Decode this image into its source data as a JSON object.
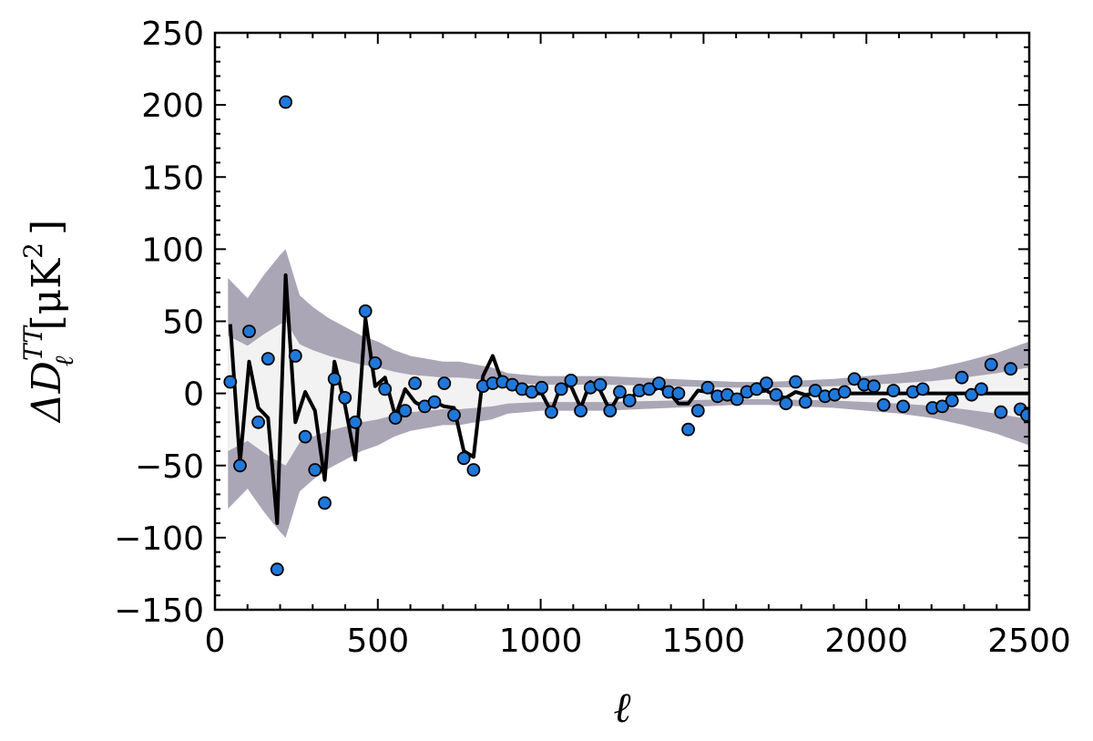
{
  "chart_data": {
    "type": "scatter",
    "title": "",
    "xlabel": "ℓ",
    "ylabel": {
      "delta": "ΔD",
      "superscript": "TT",
      "subscript": "ℓ",
      "unit": "[μK",
      "unit_exp": "2",
      "unit_close": "]"
    },
    "xlim": [
      0,
      2500
    ],
    "ylim": [
      -150,
      250
    ],
    "xticks": [
      0,
      500,
      1000,
      1500,
      2000,
      2500
    ],
    "xtick_labels": [
      "0",
      "500",
      "1000",
      "1500",
      "2000",
      "2500"
    ],
    "yticks": [
      -150,
      -100,
      -50,
      0,
      50,
      100,
      150,
      200,
      250
    ],
    "ytick_labels": [
      "−150",
      "−100",
      "−50",
      "0",
      "50",
      "100",
      "150",
      "200",
      "250"
    ],
    "grid": false,
    "colors": {
      "points": "#1f78d9",
      "line": "#000000",
      "outer_band": "#aaa6b6",
      "inner_band": "#f2f2f2"
    },
    "points": [
      [
        47,
        8
      ],
      [
        77,
        -50
      ],
      [
        105,
        43
      ],
      [
        133,
        -20
      ],
      [
        163,
        24
      ],
      [
        191,
        -122
      ],
      [
        217,
        202
      ],
      [
        247,
        26
      ],
      [
        277,
        -30
      ],
      [
        307,
        -53
      ],
      [
        337,
        -76
      ],
      [
        367,
        10
      ],
      [
        399,
        -3
      ],
      [
        431,
        -20
      ],
      [
        462,
        57
      ],
      [
        492,
        21
      ],
      [
        522,
        3
      ],
      [
        554,
        -17
      ],
      [
        584,
        -12
      ],
      [
        614,
        7
      ],
      [
        644,
        -9
      ],
      [
        674,
        -6
      ],
      [
        704,
        7
      ],
      [
        734,
        -15
      ],
      [
        764,
        -45
      ],
      [
        794,
        -53
      ],
      [
        823,
        5
      ],
      [
        853,
        7
      ],
      [
        883,
        8
      ],
      [
        913,
        6
      ],
      [
        943,
        3
      ],
      [
        973,
        1
      ],
      [
        1003,
        4
      ],
      [
        1033,
        -13
      ],
      [
        1063,
        3
      ],
      [
        1093,
        9
      ],
      [
        1123,
        -12
      ],
      [
        1153,
        4
      ],
      [
        1183,
        6
      ],
      [
        1213,
        -12
      ],
      [
        1243,
        1
      ],
      [
        1273,
        -5
      ],
      [
        1303,
        2
      ],
      [
        1333,
        3
      ],
      [
        1363,
        7
      ],
      [
        1393,
        1
      ],
      [
        1423,
        0
      ],
      [
        1453,
        -25
      ],
      [
        1483,
        -12
      ],
      [
        1513,
        4
      ],
      [
        1543,
        -2
      ],
      [
        1573,
        -1
      ],
      [
        1603,
        -4
      ],
      [
        1633,
        1
      ],
      [
        1663,
        3
      ],
      [
        1693,
        7
      ],
      [
        1723,
        -1
      ],
      [
        1753,
        -7
      ],
      [
        1783,
        8
      ],
      [
        1813,
        -6
      ],
      [
        1843,
        2
      ],
      [
        1873,
        -2
      ],
      [
        1903,
        -1
      ],
      [
        1933,
        1
      ],
      [
        1963,
        10
      ],
      [
        1993,
        6
      ],
      [
        2023,
        5
      ],
      [
        2053,
        -8
      ],
      [
        2083,
        2
      ],
      [
        2113,
        -9
      ],
      [
        2143,
        1
      ],
      [
        2173,
        3
      ],
      [
        2203,
        -10
      ],
      [
        2233,
        -9
      ],
      [
        2263,
        -5
      ],
      [
        2293,
        11
      ],
      [
        2323,
        -1
      ],
      [
        2353,
        3
      ],
      [
        2383,
        20
      ],
      [
        2413,
        -13
      ],
      [
        2443,
        17
      ],
      [
        2473,
        -11
      ],
      [
        2493,
        -15
      ]
    ],
    "model_line": [
      [
        47,
        48
      ],
      [
        77,
        -48
      ],
      [
        105,
        22
      ],
      [
        133,
        -10
      ],
      [
        163,
        -17
      ],
      [
        191,
        -90
      ],
      [
        217,
        82
      ],
      [
        247,
        -20
      ],
      [
        277,
        1
      ],
      [
        307,
        -12
      ],
      [
        337,
        -60
      ],
      [
        367,
        22
      ],
      [
        399,
        -8
      ],
      [
        431,
        -46
      ],
      [
        462,
        52
      ],
      [
        492,
        5
      ],
      [
        522,
        11
      ],
      [
        554,
        -16
      ],
      [
        584,
        3
      ],
      [
        614,
        -6
      ],
      [
        644,
        -10
      ],
      [
        674,
        -6
      ],
      [
        704,
        -9
      ],
      [
        734,
        -10
      ],
      [
        764,
        -40
      ],
      [
        794,
        -44
      ],
      [
        823,
        12
      ],
      [
        853,
        26
      ],
      [
        883,
        7
      ],
      [
        913,
        5
      ],
      [
        943,
        0
      ],
      [
        973,
        0
      ],
      [
        1003,
        0
      ],
      [
        1033,
        -13
      ],
      [
        1063,
        6
      ],
      [
        1093,
        5
      ],
      [
        1123,
        -10
      ],
      [
        1153,
        8
      ],
      [
        1183,
        2
      ],
      [
        1213,
        -12
      ],
      [
        1243,
        0
      ],
      [
        1273,
        -4
      ],
      [
        1303,
        2
      ],
      [
        1333,
        1
      ],
      [
        1363,
        4
      ],
      [
        1393,
        1
      ],
      [
        1423,
        -7
      ],
      [
        1453,
        -7
      ],
      [
        1483,
        2
      ],
      [
        1513,
        1
      ],
      [
        1543,
        0
      ],
      [
        1573,
        0
      ],
      [
        1603,
        -2
      ],
      [
        1633,
        1
      ],
      [
        1663,
        1
      ],
      [
        1693,
        2
      ],
      [
        1723,
        -2
      ],
      [
        1753,
        -3
      ],
      [
        1783,
        1
      ],
      [
        1813,
        -1
      ],
      [
        1843,
        0
      ],
      [
        1900,
        0
      ],
      [
        2500,
        0
      ]
    ],
    "band_outer_halfwidth": [
      [
        40,
        80
      ],
      [
        100,
        66
      ],
      [
        150,
        82
      ],
      [
        200,
        96
      ],
      [
        217,
        100
      ],
      [
        260,
        68
      ],
      [
        300,
        60
      ],
      [
        350,
        52
      ],
      [
        400,
        46
      ],
      [
        450,
        40
      ],
      [
        500,
        36
      ],
      [
        550,
        30
      ],
      [
        600,
        26
      ],
      [
        650,
        24
      ],
      [
        700,
        22
      ],
      [
        750,
        22
      ],
      [
        800,
        20
      ],
      [
        850,
        18
      ],
      [
        900,
        14
      ],
      [
        950,
        13
      ],
      [
        1000,
        12
      ],
      [
        1100,
        12
      ],
      [
        1200,
        12
      ],
      [
        1300,
        11
      ],
      [
        1400,
        10
      ],
      [
        1500,
        9
      ],
      [
        1600,
        8
      ],
      [
        1700,
        8
      ],
      [
        1800,
        9
      ],
      [
        1900,
        10
      ],
      [
        2000,
        12
      ],
      [
        2100,
        14
      ],
      [
        2200,
        17
      ],
      [
        2300,
        22
      ],
      [
        2400,
        28
      ],
      [
        2500,
        36
      ]
    ],
    "band_inner_halfwidth": [
      [
        40,
        40
      ],
      [
        100,
        33
      ],
      [
        150,
        41
      ],
      [
        200,
        48
      ],
      [
        217,
        50
      ],
      [
        260,
        34
      ],
      [
        300,
        30
      ],
      [
        350,
        26
      ],
      [
        400,
        23
      ],
      [
        450,
        20
      ],
      [
        500,
        18
      ],
      [
        550,
        15
      ],
      [
        600,
        13
      ],
      [
        650,
        12
      ],
      [
        700,
        11
      ],
      [
        750,
        11
      ],
      [
        800,
        10
      ],
      [
        850,
        9
      ],
      [
        900,
        7
      ],
      [
        950,
        6.5
      ],
      [
        1000,
        6
      ],
      [
        1100,
        6
      ],
      [
        1200,
        6
      ],
      [
        1300,
        5.5
      ],
      [
        1400,
        5
      ],
      [
        1500,
        4.5
      ],
      [
        1600,
        4
      ],
      [
        1700,
        4
      ],
      [
        1800,
        4.5
      ],
      [
        1900,
        5
      ],
      [
        2000,
        6
      ],
      [
        2100,
        7
      ],
      [
        2200,
        8.5
      ],
      [
        2300,
        11
      ],
      [
        2400,
        14
      ],
      [
        2500,
        18
      ]
    ]
  }
}
